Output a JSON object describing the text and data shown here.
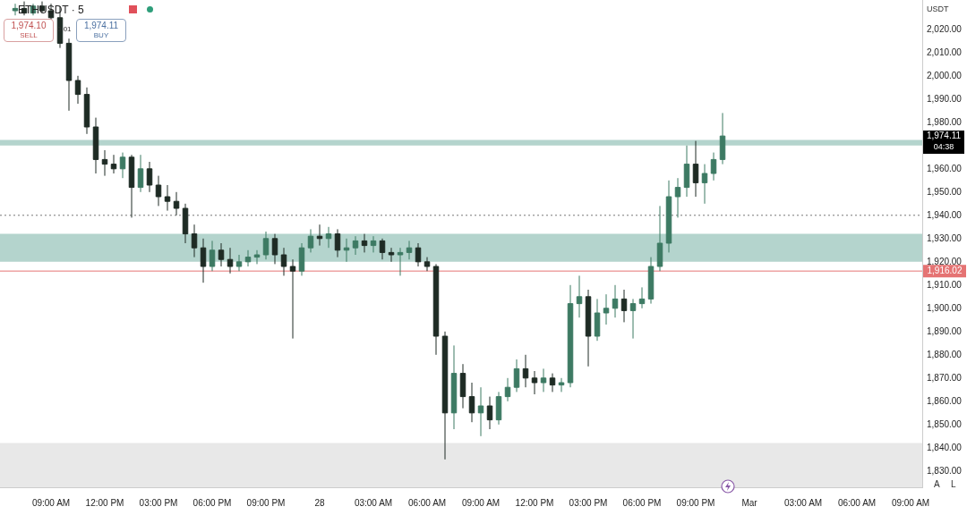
{
  "chart_data": {
    "type": "candlestick",
    "title": "ETHUSDT · 5",
    "ylabel": "USDT",
    "colors": [
      "#3d7a63",
      "#1e2b24",
      "#3d7a63",
      "#1e2b24",
      "#1e2b24",
      "#1e2b24",
      "#1e2b24",
      "#1e2b24",
      "#1e2b24",
      "#1e2b24",
      "#1e2b24",
      "#1e2b24",
      "#3d7a63",
      "#1e2b24",
      "#3d7a63",
      "#1e2b24",
      "#1e2b24",
      "#1e2b24",
      "#1e2b24",
      "#1e2b24",
      "#1e2b24",
      "#1e2b24",
      "#3d7a63",
      "#1e2b24",
      "#1e2b24",
      "#3d7a63",
      "#3d7a63",
      "#3d7a63",
      "#3d7a63",
      "#1e2b24",
      "#1e2b24",
      "#1e2b24",
      "#3d7a63",
      "#3d7a63",
      "#1e2b24",
      "#3d7a63",
      "#1e2b24",
      "#3d7a63",
      "#3d7a63",
      "#1e2b24",
      "#3d7a63",
      "#1e2b24",
      "#1e2b24",
      "#3d7a63",
      "#3d7a63",
      "#1e2b24",
      "#1e2b24",
      "#1e2b24",
      "#1e2b24",
      "#3d7a63",
      "#1e2b24",
      "#1e2b24",
      "#3d7a63",
      "#1e2b24",
      "#3d7a63",
      "#3d7a63",
      "#3d7a63",
      "#1e2b24",
      "#1e2b24",
      "#3d7a63",
      "#1e2b24",
      "#3d7a63",
      "#3d7a63",
      "#3d7a63",
      "#1e2b24",
      "#3d7a63",
      "#3d7a63",
      "#3d7a63",
      "#1e2b24",
      "#3d7a63",
      "#3d7a63",
      "#3d7a63",
      "#3d7a63",
      "#3d7a63",
      "#3d7a63",
      "#3d7a63",
      "#1e2b24",
      "#3d7a63",
      "#3d7a63",
      "#3d7a63"
    ],
    "x": [
      "--02-27T07:00",
      "--02-27T07:30",
      "--02-27T08:00",
      "--02-27T08:30",
      "--02-27T09:00",
      "--02-27T09:30",
      "--02-27T10:00",
      "--02-27T10:30",
      "--02-27T11:00",
      "--02-27T11:30",
      "--02-27T12:00",
      "--02-27T12:30",
      "--02-27T13:00",
      "--02-27T13:30",
      "--02-27T14:00",
      "--02-27T14:30",
      "--02-27T15:00",
      "--02-27T15:30",
      "--02-27T16:00",
      "--02-27T16:30",
      "--02-27T17:00",
      "--02-27T17:30",
      "--02-27T18:00",
      "--02-27T18:30",
      "--02-27T19:00",
      "--02-27T19:30",
      "--02-27T20:00",
      "--02-27T20:30",
      "--02-27T21:00",
      "--02-27T21:30",
      "--02-27T22:00",
      "--02-27T22:30",
      "--02-27T23:00",
      "--02-27T23:30",
      "--02-28T00:00",
      "--02-28T00:30",
      "--02-28T01:00",
      "--02-28T01:30",
      "--02-28T02:00",
      "--02-28T02:30",
      "--02-28T03:00",
      "--02-28T03:30",
      "--02-28T04:00",
      "--02-28T04:30",
      "--02-28T05:00",
      "--02-28T05:30",
      "--02-28T06:00",
      "--02-28T06:30",
      "--02-28T07:00",
      "--02-28T07:30",
      "--02-28T08:00",
      "--02-28T08:30",
      "--02-28T09:00",
      "--02-28T09:30",
      "--02-28T10:00",
      "--02-28T10:30",
      "--02-28T11:00",
      "--02-28T11:30",
      "--02-28T12:00",
      "--02-28T12:30",
      "--02-28T13:00",
      "--02-28T13:30",
      "--02-28T14:00",
      "--02-28T14:30",
      "--02-28T15:00",
      "--02-28T15:30",
      "--02-28T16:00",
      "--02-28T16:30",
      "--02-28T17:00",
      "--02-28T17:30",
      "--02-28T18:00",
      "--02-28T18:30",
      "--02-28T19:00",
      "--02-28T19:30",
      "--02-28T20:00",
      "--02-28T20:30",
      "--02-28T21:00",
      "--02-28T21:30",
      "--02-28T22:00",
      "--02-28T22:30"
    ],
    "ohlc": [
      [
        2028,
        2031,
        2026,
        2029
      ],
      [
        2029,
        2032,
        2026,
        2027
      ],
      [
        2027,
        2031,
        2026,
        2030
      ],
      [
        2030,
        2032,
        2027,
        2028
      ],
      [
        2028,
        2031,
        2024,
        2025
      ],
      [
        2025,
        2030,
        2012,
        2014
      ],
      [
        2014,
        2016,
        1985,
        1998
      ],
      [
        1998,
        2000,
        1988,
        1992
      ],
      [
        1992,
        1995,
        1975,
        1978
      ],
      [
        1978,
        1982,
        1958,
        1964
      ],
      [
        1964,
        1968,
        1957,
        1962
      ],
      [
        1962,
        1966,
        1958,
        1960
      ],
      [
        1960,
        1967,
        1956,
        1965
      ],
      [
        1965,
        1966,
        1939,
        1952
      ],
      [
        1952,
        1966,
        1950,
        1960
      ],
      [
        1960,
        1963,
        1950,
        1953
      ],
      [
        1953,
        1957,
        1944,
        1948
      ],
      [
        1948,
        1953,
        1942,
        1946
      ],
      [
        1946,
        1950,
        1940,
        1943
      ],
      [
        1943,
        1945,
        1928,
        1932
      ],
      [
        1932,
        1936,
        1922,
        1926
      ],
      [
        1926,
        1930,
        1911,
        1918
      ],
      [
        1918,
        1929,
        1916,
        1925
      ],
      [
        1925,
        1928,
        1918,
        1921
      ],
      [
        1921,
        1926,
        1915,
        1918
      ],
      [
        1918,
        1923,
        1916,
        1920
      ],
      [
        1920,
        1925,
        1918,
        1922
      ],
      [
        1922,
        1925,
        1919,
        1923
      ],
      [
        1923,
        1933,
        1921,
        1930
      ],
      [
        1930,
        1932,
        1919,
        1923
      ],
      [
        1923,
        1926,
        1914,
        1918
      ],
      [
        1918,
        1921,
        1887,
        1916
      ],
      [
        1916,
        1928,
        1914,
        1926
      ],
      [
        1926,
        1934,
        1924,
        1931
      ],
      [
        1931,
        1936,
        1927,
        1930
      ],
      [
        1930,
        1935,
        1926,
        1932
      ],
      [
        1932,
        1934,
        1922,
        1925
      ],
      [
        1925,
        1930,
        1920,
        1926
      ],
      [
        1926,
        1931,
        1923,
        1929
      ],
      [
        1929,
        1932,
        1924,
        1927
      ],
      [
        1927,
        1931,
        1924,
        1929
      ],
      [
        1929,
        1930,
        1921,
        1924
      ],
      [
        1924,
        1926,
        1920,
        1923
      ],
      [
        1923,
        1926,
        1914,
        1924
      ],
      [
        1924,
        1929,
        1921,
        1926
      ],
      [
        1926,
        1928,
        1918,
        1920
      ],
      [
        1920,
        1922,
        1916,
        1918
      ],
      [
        1918,
        1919,
        1880,
        1888
      ],
      [
        1888,
        1890,
        1835,
        1855
      ],
      [
        1855,
        1884,
        1848,
        1872
      ],
      [
        1872,
        1876,
        1857,
        1862
      ],
      [
        1862,
        1868,
        1851,
        1855
      ],
      [
        1855,
        1866,
        1845,
        1858
      ],
      [
        1858,
        1862,
        1848,
        1852
      ],
      [
        1852,
        1864,
        1850,
        1862
      ],
      [
        1862,
        1870,
        1860,
        1866
      ],
      [
        1866,
        1878,
        1864,
        1874
      ],
      [
        1874,
        1880,
        1866,
        1870
      ],
      [
        1870,
        1873,
        1863,
        1868
      ],
      [
        1868,
        1874,
        1864,
        1870
      ],
      [
        1870,
        1872,
        1864,
        1867
      ],
      [
        1867,
        1870,
        1864,
        1868
      ],
      [
        1868,
        1910,
        1866,
        1902
      ],
      [
        1902,
        1914,
        1896,
        1905
      ],
      [
        1905,
        1908,
        1875,
        1888
      ],
      [
        1888,
        1904,
        1886,
        1898
      ],
      [
        1898,
        1906,
        1893,
        1900
      ],
      [
        1900,
        1910,
        1896,
        1904
      ],
      [
        1904,
        1908,
        1894,
        1899
      ],
      [
        1899,
        1904,
        1887,
        1902
      ],
      [
        1902,
        1909,
        1900,
        1904
      ],
      [
        1904,
        1922,
        1902,
        1918
      ],
      [
        1918,
        1944,
        1916,
        1928
      ],
      [
        1928,
        1955,
        1924,
        1948
      ],
      [
        1948,
        1956,
        1939,
        1952
      ],
      [
        1952,
        1970,
        1948,
        1962
      ],
      [
        1962,
        1972,
        1948,
        1954
      ],
      [
        1954,
        1962,
        1945,
        1958
      ],
      [
        1958,
        1967,
        1955,
        1964
      ],
      [
        1964,
        1984,
        1962,
        1974.11
      ]
    ],
    "xlim": [
      "--02-27T06:09",
      "--03-01T09:39"
    ],
    "xticks": [
      {
        "value": "--02-27T09:00",
        "label": "09:00 AM"
      },
      {
        "value": "--02-27T12:00",
        "label": "12:00 PM"
      },
      {
        "value": "--02-27T15:00",
        "label": "03:00 PM"
      },
      {
        "value": "--02-27T18:00",
        "label": "06:00 PM"
      },
      {
        "value": "--02-27T21:00",
        "label": "09:00 PM"
      },
      {
        "value": "--02-28T00:00",
        "label": "28"
      },
      {
        "value": "--02-28T03:00",
        "label": "03:00 AM"
      },
      {
        "value": "--02-28T06:00",
        "label": "06:00 AM"
      },
      {
        "value": "--02-28T09:00",
        "label": "09:00 AM"
      },
      {
        "value": "--02-28T12:00",
        "label": "12:00 PM"
      },
      {
        "value": "--02-28T15:00",
        "label": "03:00 PM"
      },
      {
        "value": "--02-28T18:00",
        "label": "06:00 PM"
      },
      {
        "value": "--02-28T21:00",
        "label": "09:00 PM"
      },
      {
        "value": "--03-01T00:00",
        "label": "Mar"
      },
      {
        "value": "--03-01T03:00",
        "label": "03:00 AM"
      },
      {
        "value": "--03-01T06:00",
        "label": "06:00 AM"
      },
      {
        "value": "--03-01T09:00",
        "label": "09:00 AM"
      }
    ],
    "ylim": [
      1823,
      2033
    ],
    "yticks": [
      {
        "value": 1830,
        "label": "1,830.00"
      },
      {
        "value": 1840,
        "label": "1,840.00"
      },
      {
        "value": 1850,
        "label": "1,850.00"
      },
      {
        "value": 1860,
        "label": "1,860.00"
      },
      {
        "value": 1870,
        "label": "1,870.00"
      },
      {
        "value": 1880,
        "label": "1,880.00"
      },
      {
        "value": 1890,
        "label": "1,890.00"
      },
      {
        "value": 1900,
        "label": "1,900.00"
      },
      {
        "value": 1910,
        "label": "1,910.00"
      },
      {
        "value": 1920,
        "label": "1,920.00"
      },
      {
        "value": 1930,
        "label": "1,930.00"
      },
      {
        "value": 1940,
        "label": "1,940.00"
      },
      {
        "value": 1950,
        "label": "1,950.00"
      },
      {
        "value": 1960,
        "label": "1,960.00"
      },
      {
        "value": 1980,
        "label": "1,980.00"
      },
      {
        "value": 1990,
        "label": "1,990.00"
      },
      {
        "value": 2000,
        "label": "2,000.00"
      },
      {
        "value": 2010,
        "label": "2,010.00"
      },
      {
        "value": 2020,
        "label": "2,020.00"
      }
    ],
    "ref_lines": [
      {
        "axis": "y",
        "value": 1916.02,
        "label": "1,916.02",
        "color": "#e57373"
      },
      {
        "axis": "y",
        "value": 1940,
        "label": null,
        "color": "#777777",
        "line_style": "dotted"
      }
    ],
    "bands": [
      {
        "axis": "y",
        "from": 1970,
        "to": 1972.4,
        "label": null,
        "color": "#b4d4cd"
      },
      {
        "axis": "y",
        "from": 1920,
        "to": 1932,
        "label": null,
        "color": "#b4d4cd"
      },
      {
        "axis": "y",
        "from": 1823,
        "to": 1842,
        "label": null,
        "color": "#e8e8e8"
      }
    ],
    "annotations": [
      "1,974.10",
      "SELL",
      "0.01",
      "1,974.11",
      "BUY",
      "04:38",
      "A",
      "L",
      "1,974.11"
    ],
    "grid": false,
    "legend": false
  }
}
